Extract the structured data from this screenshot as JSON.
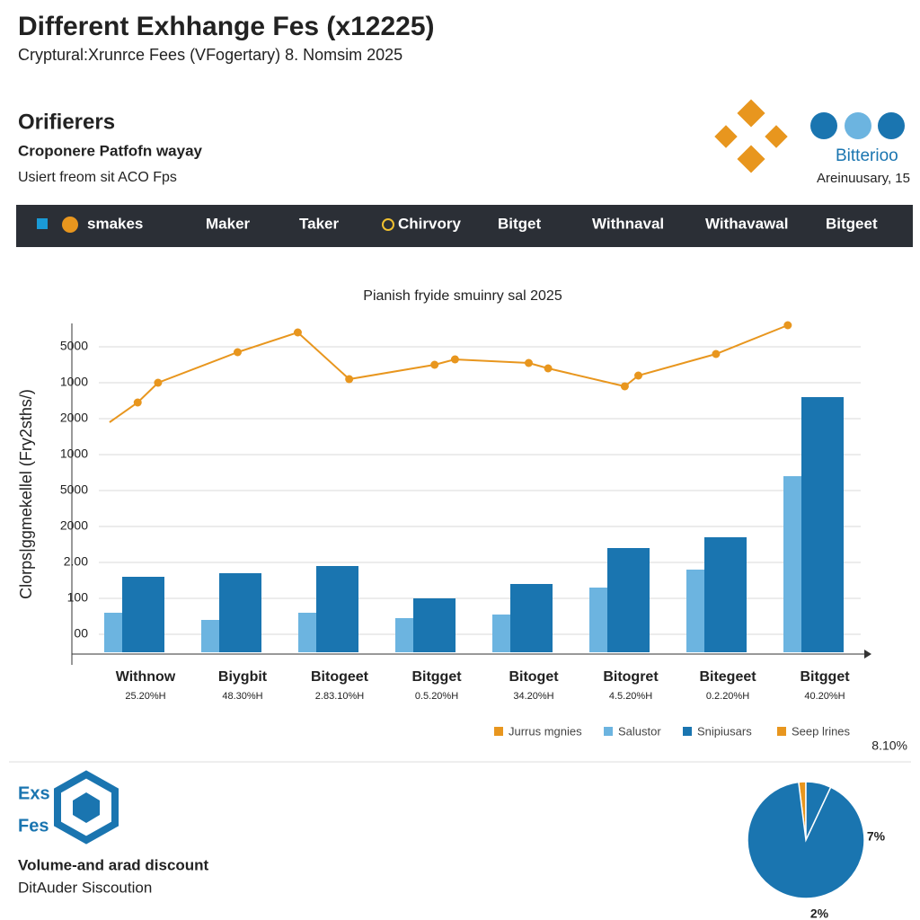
{
  "header": {
    "title": "Different Exhhange Fes (x12225)",
    "subtitle": "Cryptural:Xrunrce Fees (VFogertary) 8. Nomsim 2025"
  },
  "section": {
    "heading": "Orifierers",
    "line1": "Croponere Patfofn wayay",
    "line2": "Usiert freom sit ACO Fps"
  },
  "brand": {
    "name": "Bitterioo",
    "date": "Areinuusary, 15"
  },
  "nav": [
    "smakes",
    "Maker",
    "Taker",
    "Chirvory",
    "Bitget",
    "Withnaval",
    "Withavawal",
    "Bitgeet"
  ],
  "chart_data": [
    {
      "type": "bar",
      "title": "Pianish fryide smuinry sal 2025",
      "y_label": "Clorps|ggmekellel (Fry2sths/)",
      "categories": [
        "Withnow",
        "Biygbit",
        "Bitogeet",
        "Bitgget",
        "Bitoget",
        "Bitogret",
        "Bitegeet",
        "Bitgget"
      ],
      "category_notes": [
        "25.20%H",
        "48.30%H",
        "2.83.10%H",
        "0.5.20%H",
        "34.20%H",
        "4.5.20%H",
        "0.2.20%H",
        "40.20%H"
      ],
      "series": [
        {
          "name": "Salustor",
          "color": "#6cb4e0",
          "values": [
            1.1,
            0.9,
            1.1,
            0.95,
            1.05,
            1.8,
            2.3,
            4.9
          ]
        },
        {
          "name": "Snipiusars",
          "color": "#1a75b0",
          "values": [
            2.1,
            2.2,
            2.4,
            1.5,
            1.9,
            2.9,
            3.2,
            7.1
          ]
        },
        {
          "name": "Jurrus mgnies",
          "color": "#e8961e",
          "kind": "line",
          "x": [
            -0.26,
            0.03,
            0.24,
            1.06,
            1.68,
            2.21,
            3.09,
            3.3,
            4.06,
            4.26,
            5.05,
            5.19,
            5.99,
            6.73
          ],
          "values": [
            6.4,
            6.95,
            7.5,
            8.35,
            8.9,
            7.6,
            8.0,
            8.15,
            8.05,
            7.9,
            7.4,
            7.7,
            8.3,
            9.1
          ]
        }
      ],
      "extra_legend": [
        {
          "name": "Seep lrines",
          "color": "#e8961e"
        }
      ],
      "note": "8.10%",
      "ylim": [
        0,
        9.2
      ],
      "yticks": [
        {
          "value": 0.5,
          "label": "00"
        },
        {
          "value": 1.5,
          "label": "100"
        },
        {
          "value": 2.5,
          "label": "2.00"
        },
        {
          "value": 3.5,
          "label": "2000"
        },
        {
          "value": 4.5,
          "label": "5000"
        },
        {
          "value": 5.5,
          "label": "1000"
        },
        {
          "value": 6.5,
          "label": "2000"
        },
        {
          "value": 7.5,
          "label": "1000"
        },
        {
          "value": 8.5,
          "label": "5000"
        }
      ],
      "grid": true
    },
    {
      "type": "pie",
      "values": [
        2,
        7,
        91
      ],
      "colors": [
        "#e8961e",
        "#1a75b0",
        "#1a75b0"
      ],
      "value_labels": [
        "2%",
        "7%",
        null
      ]
    }
  ],
  "footer": {
    "badge1": "Exs",
    "badge2": "Fes",
    "line1": "Volume-and arad discount",
    "line2": "DitAuder Siscoution"
  }
}
